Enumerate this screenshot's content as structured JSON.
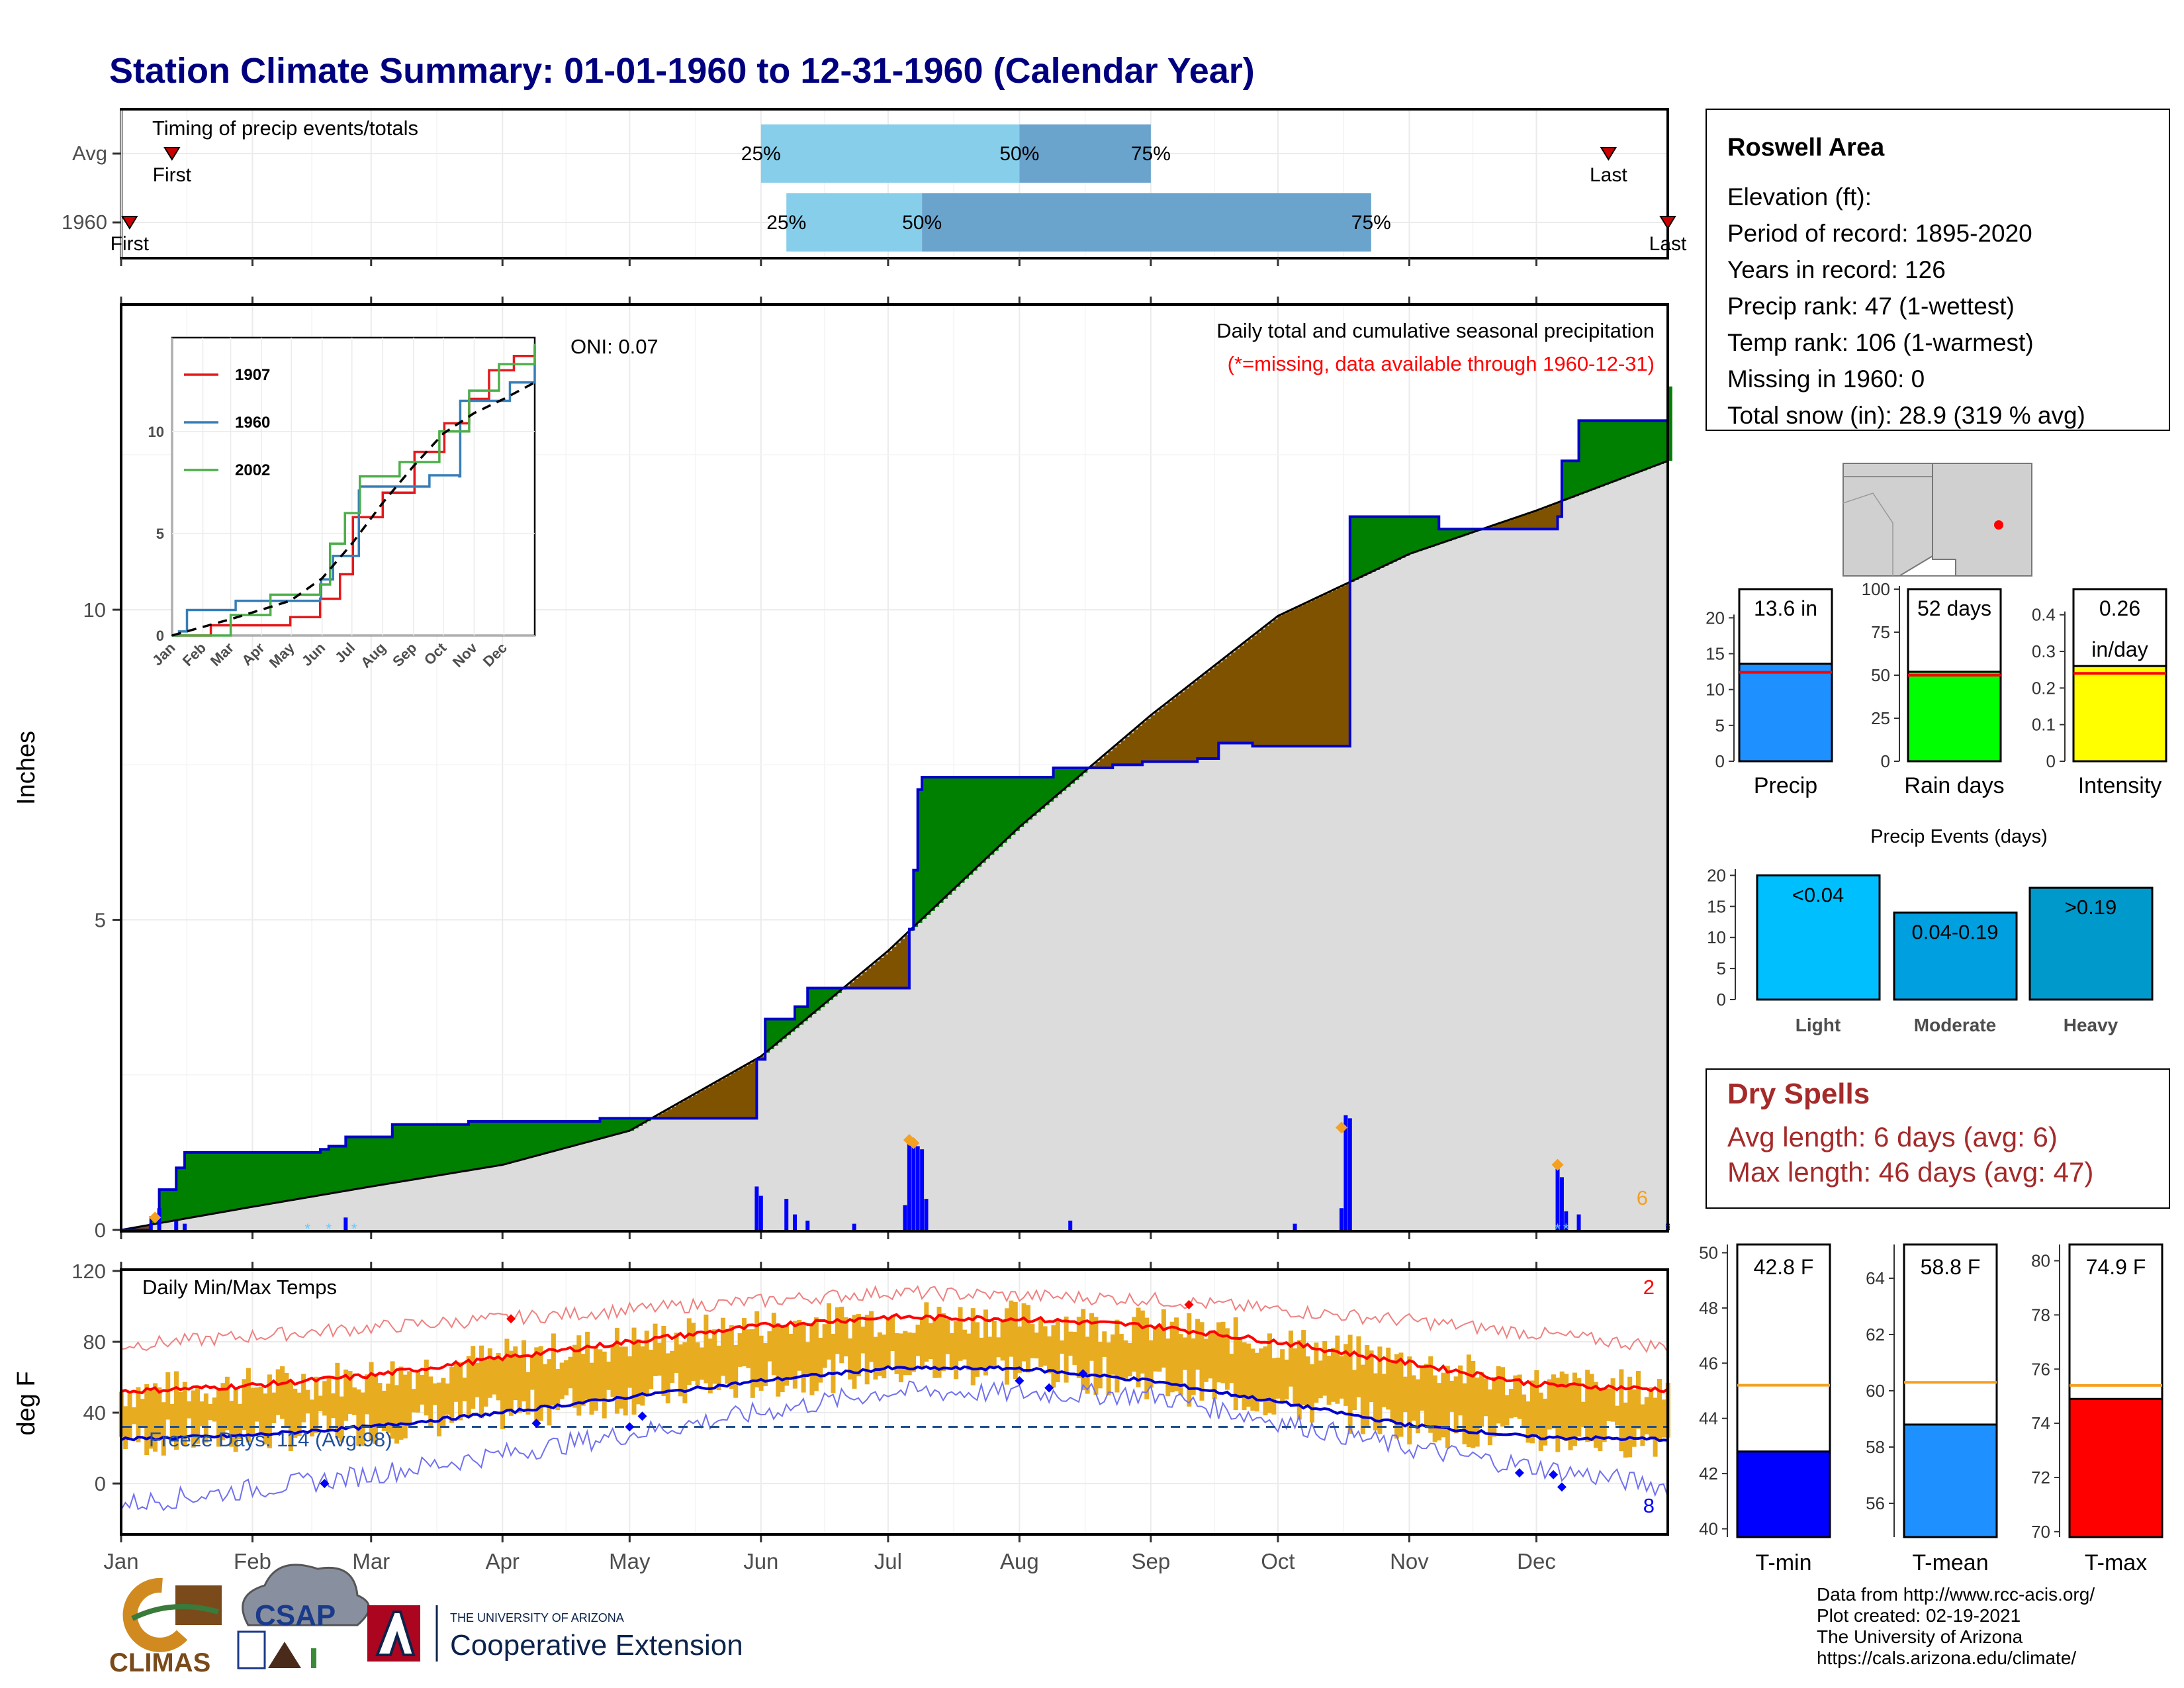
{
  "title": "Station Climate Summary: 01-01-1960 to 12-31-1960 (Calendar Year)",
  "months": [
    "Jan",
    "Feb",
    "Mar",
    "Apr",
    "May",
    "Jun",
    "Jul",
    "Aug",
    "Sep",
    "Oct",
    "Nov",
    "Dec"
  ],
  "colors": {
    "title": "#00007f",
    "light_blue": "#87ceeb",
    "mid_blue": "#6aa3cc",
    "green": "#008000",
    "brown": "#7f5200",
    "grey": "#dcdcdc",
    "precip_bar": "#0000ff",
    "orange": "#f4a020",
    "temp_bar": "#e8ac20",
    "red": "#ff0000",
    "blue": "#0000ff",
    "dry_red": "#a52a2a",
    "precip_fill": "#1e90ff",
    "rain_fill": "#00ff00",
    "intensity_fill": "#ffff00",
    "light": "#00bfff",
    "moderate": "#00a0e0",
    "heavy": "#0099cc"
  },
  "timing": {
    "label": "Timing of precip events/totals",
    "rows": [
      {
        "label": "Avg",
        "first": "First",
        "last": "Last",
        "first_doy": 13,
        "last_doy": 352,
        "q25": 152,
        "q50": 213,
        "q75": 244
      },
      {
        "label": "1960",
        "first": "First",
        "last": "Last",
        "first_doy": 3,
        "last_doy": 366,
        "q25": 158,
        "q50": 190,
        "q75": 296
      }
    ],
    "q_labels": [
      "25%",
      "50%",
      "75%"
    ]
  },
  "precip_chart": {
    "ylabel": "Inches",
    "yticks": [
      0,
      5,
      10
    ],
    "header": "Daily total and cumulative seasonal precipitation",
    "note": "(*=missing, data available through 1960-12-31)",
    "oni": "ONI: 0.07",
    "corner_count": "6",
    "cum_1960": [
      [
        1,
        0
      ],
      [
        8,
        0.2
      ],
      [
        10,
        0.65
      ],
      [
        14,
        1
      ],
      [
        16,
        1.25
      ],
      [
        48,
        1.3
      ],
      [
        50,
        1.35
      ],
      [
        54,
        1.5
      ],
      [
        65,
        1.7
      ],
      [
        83,
        1.75
      ],
      [
        114,
        1.8
      ],
      [
        150,
        1.8
      ],
      [
        151,
        2.75
      ],
      [
        153,
        3.4
      ],
      [
        160,
        3.6
      ],
      [
        163,
        3.9
      ],
      [
        182,
        3.9
      ],
      [
        187,
        4.85
      ],
      [
        188,
        5.8
      ],
      [
        189,
        7.1
      ],
      [
        190,
        7.3
      ],
      [
        220,
        7.3
      ],
      [
        221,
        7.45
      ],
      [
        235,
        7.5
      ],
      [
        242,
        7.55
      ],
      [
        255,
        7.6
      ],
      [
        260,
        7.85
      ],
      [
        268,
        7.8
      ],
      [
        290,
        7.8
      ],
      [
        291,
        11.5
      ],
      [
        305,
        11.5
      ],
      [
        312,
        11.3
      ],
      [
        322,
        11.3
      ],
      [
        340,
        11.5
      ],
      [
        341,
        12.4
      ],
      [
        345,
        13.05
      ],
      [
        366,
        13.6
      ]
    ],
    "cum_avg": [
      [
        1,
        0
      ],
      [
        30,
        0.35
      ],
      [
        60,
        0.7
      ],
      [
        91,
        1.05
      ],
      [
        121,
        1.6
      ],
      [
        152,
        2.8
      ],
      [
        182,
        4.5
      ],
      [
        213,
        6.5
      ],
      [
        244,
        8.3
      ],
      [
        274,
        9.9
      ],
      [
        305,
        10.9
      ],
      [
        335,
        11.6
      ],
      [
        366,
        12.4
      ]
    ],
    "daily_precip": [
      [
        8,
        0.1
      ],
      [
        10,
        0.35
      ],
      [
        14,
        0.15
      ],
      [
        16,
        0.1
      ],
      [
        54,
        0.2
      ],
      [
        151,
        0.7
      ],
      [
        152,
        0.55
      ],
      [
        158,
        0.5
      ],
      [
        160,
        0.25
      ],
      [
        163,
        0.15
      ],
      [
        174,
        0.1
      ],
      [
        186,
        0.4
      ],
      [
        187,
        1.5
      ],
      [
        188,
        1.45
      ],
      [
        189,
        1.35
      ],
      [
        190,
        1.3
      ],
      [
        191,
        0.5
      ],
      [
        225,
        0.15
      ],
      [
        278,
        0.1
      ],
      [
        289,
        0.35
      ],
      [
        290,
        1.85
      ],
      [
        291,
        1.8
      ],
      [
        340,
        1.0
      ],
      [
        341,
        0.85
      ],
      [
        342,
        0.3
      ],
      [
        345,
        0.25
      ],
      [
        366,
        0.1
      ]
    ],
    "record_markers": [
      [
        9,
        0.2
      ],
      [
        187,
        1.45
      ],
      [
        188,
        1.4
      ],
      [
        289,
        1.65
      ],
      [
        340,
        1.05
      ]
    ]
  },
  "inset": {
    "yticks": [
      0,
      5,
      10
    ],
    "months": [
      "Jan",
      "Feb",
      "Mar",
      "Apr",
      "May",
      "Jun",
      "Jul",
      "Aug",
      "Sep",
      "Oct",
      "Nov",
      "Dec"
    ],
    "series": [
      {
        "name": "1907",
        "color": "#e41a1c",
        "points": [
          [
            1,
            0
          ],
          [
            40,
            0.5
          ],
          [
            120,
            0.9
          ],
          [
            150,
            1.8
          ],
          [
            170,
            3
          ],
          [
            183,
            5.8
          ],
          [
            213,
            7
          ],
          [
            245,
            9
          ],
          [
            275,
            10.4
          ],
          [
            300,
            11.6
          ],
          [
            320,
            13
          ],
          [
            345,
            13.7
          ],
          [
            366,
            14.2
          ]
        ]
      },
      {
        "name": "1960",
        "color": "#377eb8",
        "points": [
          [
            1,
            0
          ],
          [
            8,
            0.2
          ],
          [
            16,
            1.25
          ],
          [
            65,
            1.7
          ],
          [
            150,
            1.8
          ],
          [
            151,
            2.75
          ],
          [
            163,
            3.9
          ],
          [
            189,
            7.1
          ],
          [
            190,
            7.3
          ],
          [
            260,
            7.85
          ],
          [
            290,
            7.8
          ],
          [
            291,
            11.5
          ],
          [
            340,
            11.5
          ],
          [
            341,
            12.4
          ],
          [
            366,
            13.6
          ]
        ]
      },
      {
        "name": "2002",
        "color": "#4daf4a",
        "points": [
          [
            1,
            0
          ],
          [
            60,
            1
          ],
          [
            100,
            2
          ],
          [
            150,
            2.5
          ],
          [
            160,
            4.5
          ],
          [
            175,
            6
          ],
          [
            190,
            7.8
          ],
          [
            230,
            8.5
          ],
          [
            270,
            10
          ],
          [
            300,
            12
          ],
          [
            330,
            13.3
          ],
          [
            366,
            14.3
          ]
        ]
      }
    ],
    "avg_line": [
      [
        1,
        0
      ],
      [
        60,
        0.8
      ],
      [
        120,
        1.7
      ],
      [
        152,
        2.8
      ],
      [
        182,
        4.5
      ],
      [
        213,
        6.5
      ],
      [
        244,
        8.3
      ],
      [
        274,
        9.9
      ],
      [
        305,
        10.9
      ],
      [
        335,
        11.6
      ],
      [
        366,
        12.4
      ]
    ]
  },
  "temp_chart": {
    "ylabel": "deg F",
    "label": "Daily Min/Max Temps",
    "yticks": [
      0,
      40,
      80,
      120
    ],
    "freeze": "Freeze Days: 114 (Avg:98)",
    "freeze_line": 32,
    "count_high": "2",
    "count_low": "8",
    "avg_max": [
      [
        1,
        52
      ],
      [
        30,
        55
      ],
      [
        60,
        61
      ],
      [
        91,
        71
      ],
      [
        121,
        80
      ],
      [
        152,
        89
      ],
      [
        182,
        94
      ],
      [
        213,
        93
      ],
      [
        244,
        89
      ],
      [
        274,
        80
      ],
      [
        305,
        68
      ],
      [
        335,
        56
      ],
      [
        366,
        53
      ]
    ],
    "avg_min": [
      [
        1,
        25
      ],
      [
        30,
        27
      ],
      [
        60,
        32
      ],
      [
        91,
        40
      ],
      [
        121,
        49
      ],
      [
        152,
        58
      ],
      [
        182,
        65
      ],
      [
        213,
        65
      ],
      [
        244,
        58
      ],
      [
        274,
        46
      ],
      [
        305,
        33
      ],
      [
        335,
        26
      ],
      [
        366,
        25
      ]
    ],
    "rec_max": [
      [
        1,
        78
      ],
      [
        60,
        88
      ],
      [
        121,
        98
      ],
      [
        182,
        108
      ],
      [
        244,
        104
      ],
      [
        305,
        92
      ],
      [
        366,
        77
      ]
    ],
    "rec_min": [
      [
        1,
        -12
      ],
      [
        60,
        5
      ],
      [
        121,
        28
      ],
      [
        182,
        52
      ],
      [
        244,
        50
      ],
      [
        305,
        20
      ],
      [
        366,
        -2
      ]
    ],
    "record_highs": [
      [
        93,
        93
      ],
      [
        253,
        101
      ]
    ],
    "record_lows": [
      [
        49,
        0
      ],
      [
        99,
        34
      ],
      [
        121,
        32
      ],
      [
        124,
        38
      ],
      [
        213,
        58
      ],
      [
        220,
        54
      ],
      [
        228,
        62
      ],
      [
        331,
        6
      ],
      [
        339,
        5
      ],
      [
        341,
        -2
      ]
    ]
  },
  "info_box": {
    "station": "Roswell Area",
    "lines": [
      "Elevation (ft):",
      "Period of record: 1895-2020",
      "Years in record: 126",
      "Precip rank: 47 (1-wettest)",
      "Temp rank: 106 (1-warmest)",
      "Missing in 1960: 0",
      "Total snow (in): 28.9 (319 % avg)"
    ]
  },
  "mini_bars": [
    {
      "name": "Precip",
      "value_label": "13.6 in",
      "value": 13.6,
      "avg": 12.4,
      "ymax": 24,
      "yticks": [
        0,
        5,
        10,
        15,
        20
      ],
      "fill": "#1e90ff"
    },
    {
      "name": "Rain days",
      "value_label": "52 days",
      "value": 52,
      "avg": 50,
      "ymax": 100,
      "yticks": [
        0,
        25,
        50,
        75,
        100
      ],
      "fill": "#00ff00"
    },
    {
      "name": "Intensity",
      "value_label": "0.26",
      "value_label2": "in/day",
      "value": 0.26,
      "avg": 0.24,
      "ymax": 0.47,
      "yticks": [
        0.0,
        0.1,
        0.2,
        0.3,
        0.4
      ],
      "fill": "#ffff00"
    }
  ],
  "events": {
    "title": "Precip Events (days)",
    "yticks": [
      0,
      5,
      10,
      15,
      20
    ],
    "bars": [
      {
        "category": "Light",
        "label": "<0.04",
        "value": 20
      },
      {
        "category": "Moderate",
        "label": "0.04-0.19",
        "value": 14
      },
      {
        "category": "Heavy",
        "label": ">0.19",
        "value": 18
      }
    ]
  },
  "dry_spells": {
    "title": "Dry Spells",
    "avg": "Avg length: 6 days (avg: 6)",
    "max": "Max length: 46 days (avg: 47)"
  },
  "temp_bars": [
    {
      "name": "T-min",
      "value_label": "42.8 F",
      "value": 42.8,
      "avg": 45.2,
      "ymin": 39.7,
      "ymax": 50.3,
      "yticks": [
        40,
        42,
        44,
        46,
        48,
        50
      ],
      "fill": "#0000ff"
    },
    {
      "name": "T-mean",
      "value_label": "58.8 F",
      "value": 58.8,
      "avg": 60.3,
      "ymin": 54.8,
      "ymax": 65.2,
      "yticks": [
        56,
        58,
        60,
        62,
        64
      ],
      "fill": "#1e90ff"
    },
    {
      "name": "T-max",
      "value_label": "74.9 F",
      "value": 74.9,
      "avg": 75.4,
      "ymin": 69.8,
      "ymax": 80.6,
      "yticks": [
        70,
        72,
        74,
        76,
        78,
        80
      ],
      "fill": "#ff0000"
    }
  ],
  "credits": [
    "Data from http://www.rcc-acis.org/",
    "Plot created: 02-19-2021",
    "The University of Arizona",
    "https://cals.arizona.edu/climate/"
  ],
  "logos": {
    "climas": "CLIMAS",
    "csap": "CSAP",
    "ua_top": "THE UNIVERSITY OF ARIZONA",
    "ua_bottom": "Cooperative Extension"
  }
}
